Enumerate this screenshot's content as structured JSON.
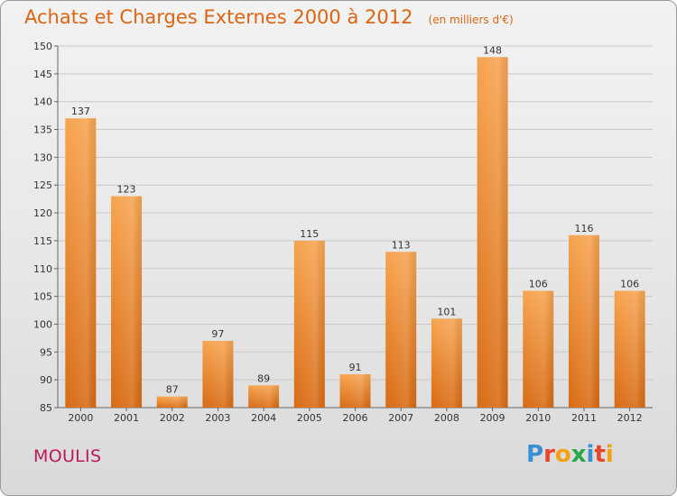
{
  "chart_data": {
    "type": "bar",
    "title": "Achats et Charges Externes 2000 à 2012",
    "subtitle": "(en milliers d'€)",
    "categories": [
      "2000",
      "2001",
      "2002",
      "2003",
      "2004",
      "2005",
      "2006",
      "2007",
      "2008",
      "2009",
      "2010",
      "2011",
      "2012"
    ],
    "values": [
      137,
      123,
      87,
      97,
      89,
      115,
      91,
      113,
      101,
      148,
      106,
      116,
      106
    ],
    "ylim": [
      85,
      150
    ],
    "yticks": [
      85,
      90,
      95,
      100,
      105,
      110,
      115,
      120,
      125,
      130,
      135,
      140,
      145,
      150
    ],
    "grid": true,
    "bar_color": "#f0892c"
  },
  "footer": {
    "commune": "MOULIS",
    "logo_letters": [
      "P",
      "r",
      "o",
      "x",
      "i",
      "t",
      "i"
    ],
    "logo_colors": [
      "#3a8fd0",
      "#e8452c",
      "#f4a011",
      "#2aa84a",
      "#3a8fd0",
      "#e8452c",
      "#f4a011"
    ]
  }
}
